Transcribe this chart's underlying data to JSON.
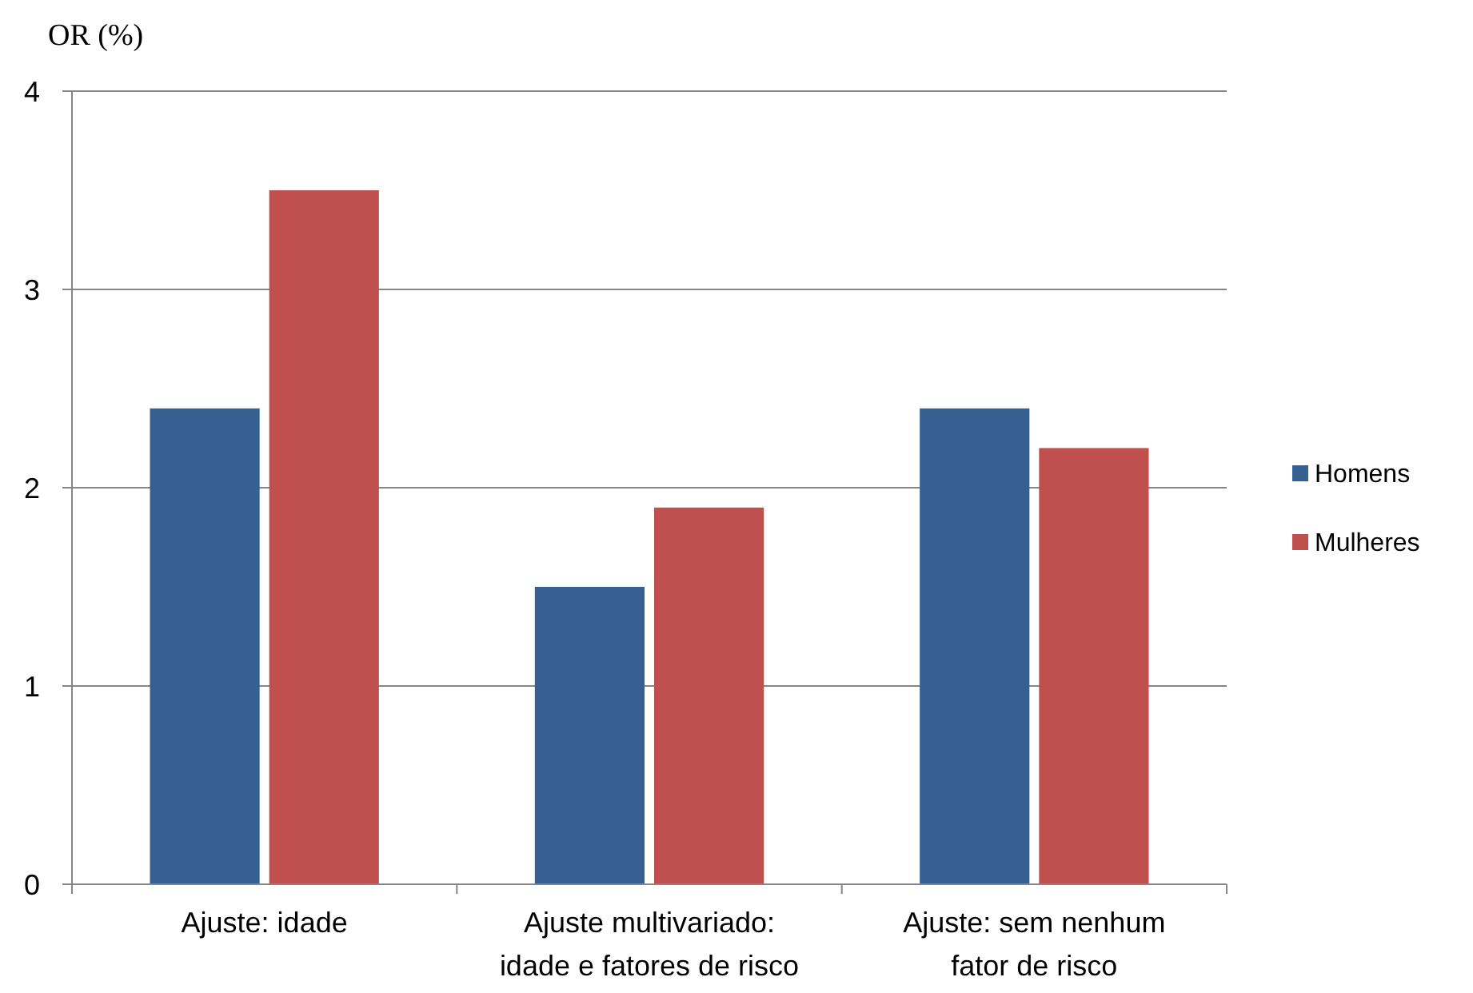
{
  "chart_data": {
    "type": "bar",
    "ylabel": "OR (%)",
    "categories": [
      "Ajuste: idade",
      "Ajuste multivariado: idade e fatores de risco",
      "Ajuste: sem nenhum fator de risco"
    ],
    "series": [
      {
        "name": "Homens",
        "color": "#376092",
        "values": [
          2.4,
          1.5,
          2.4
        ]
      },
      {
        "name": "Mulheres",
        "color": "#c0504d",
        "values": [
          3.5,
          1.9,
          2.2
        ]
      }
    ],
    "ylim": [
      0,
      4
    ],
    "yticks": [
      0,
      1,
      2,
      3,
      4
    ],
    "grid": "y",
    "legend": "right"
  }
}
